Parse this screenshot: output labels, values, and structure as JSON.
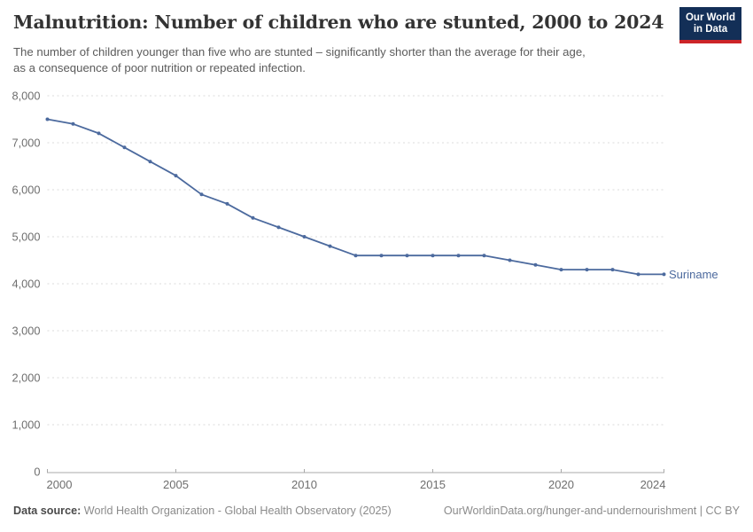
{
  "header": {
    "title": "Malnutrition: Number of children who are stunted, 2000 to 2024",
    "subtitle_line1": "The number of children younger than five who are stunted – significantly shorter than the average for their age,",
    "subtitle_line2": "as a consequence of poor nutrition or repeated infection.",
    "logo": {
      "line1": "Our World",
      "line2": "in Data",
      "bg_color": "#132f57",
      "accent_color": "#cc2428"
    }
  },
  "chart_data": {
    "type": "line",
    "title": "Malnutrition: Number of children who are stunted, 2000 to 2024",
    "xlabel": "",
    "ylabel": "",
    "x": [
      2000,
      2001,
      2002,
      2003,
      2004,
      2005,
      2006,
      2007,
      2008,
      2009,
      2010,
      2011,
      2012,
      2013,
      2014,
      2015,
      2016,
      2017,
      2018,
      2019,
      2020,
      2021,
      2022,
      2023,
      2024
    ],
    "series": [
      {
        "name": "Suriname",
        "color": "#4c6a9e",
        "values": [
          7500,
          7400,
          7200,
          6900,
          6600,
          6300,
          5900,
          5700,
          5400,
          5200,
          5000,
          4800,
          4600,
          4600,
          4600,
          4600,
          4600,
          4600,
          4500,
          4400,
          4300,
          4300,
          4300,
          4200,
          4200
        ]
      }
    ],
    "xlim": [
      2000,
      2024
    ],
    "ylim": [
      0,
      8000
    ],
    "x_ticks": [
      2000,
      2005,
      2010,
      2015,
      2020,
      2024
    ],
    "y_ticks": [
      0,
      1000,
      2000,
      3000,
      4000,
      5000,
      6000,
      7000,
      8000
    ],
    "grid": true,
    "legend_position": "end-of-line label",
    "entity_label": "Suriname"
  },
  "footer": {
    "source_label": "Data source:",
    "source_text": "World Health Organization - Global Health Observatory (2025)",
    "link_text": "OurWorldinData.org/hunger-and-undernourishment | CC BY"
  }
}
